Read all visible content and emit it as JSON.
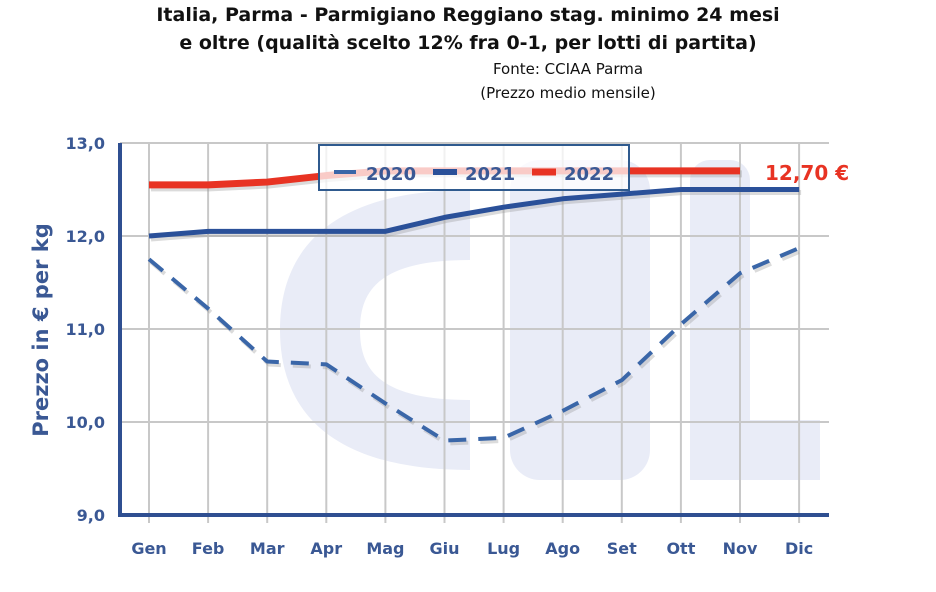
{
  "chart_data": {
    "type": "line",
    "title_line1": "Italia, Parma - Parmigiano Reggiano stag. minimo 24 mesi",
    "title_line2": "e oltre (qualità scelto 12% fra 0-1, per lotti di partita)",
    "subtitle1": "Fonte: CCIAA Parma",
    "subtitle2": "(Prezzo medio mensile)",
    "xlabel": "",
    "ylabel": "Prezzo in € per kg",
    "ylim": [
      9,
      13
    ],
    "yticks": [
      "9,0",
      "10,0",
      "11,0",
      "12,0",
      "13,0"
    ],
    "categories": [
      "Gen",
      "Feb",
      "Mar",
      "Apr",
      "Mag",
      "Giu",
      "Lug",
      "Ago",
      "Set",
      "Ott",
      "Nov",
      "Dic"
    ],
    "grid": true,
    "legend_position": "top-center",
    "series": [
      {
        "name": "2020",
        "color": "#3a66a8",
        "style": "dashed",
        "values": [
          11.75,
          11.22,
          10.65,
          10.62,
          10.2,
          9.8,
          9.83,
          10.12,
          10.45,
          11.05,
          11.6,
          11.87
        ]
      },
      {
        "name": "2021",
        "color": "#2a5099",
        "style": "solid",
        "values": [
          12.0,
          12.05,
          12.05,
          12.05,
          12.05,
          12.2,
          12.31,
          12.4,
          12.45,
          12.5,
          12.5,
          12.5
        ]
      },
      {
        "name": "2022",
        "color": "#e83323",
        "style": "solid",
        "values": [
          12.55,
          12.55,
          12.58,
          12.65,
          12.7,
          12.7,
          12.7,
          12.7,
          12.7,
          12.7,
          12.7,
          null
        ]
      }
    ],
    "annotation": "12,70 €",
    "annotation_color": "#e83323"
  }
}
